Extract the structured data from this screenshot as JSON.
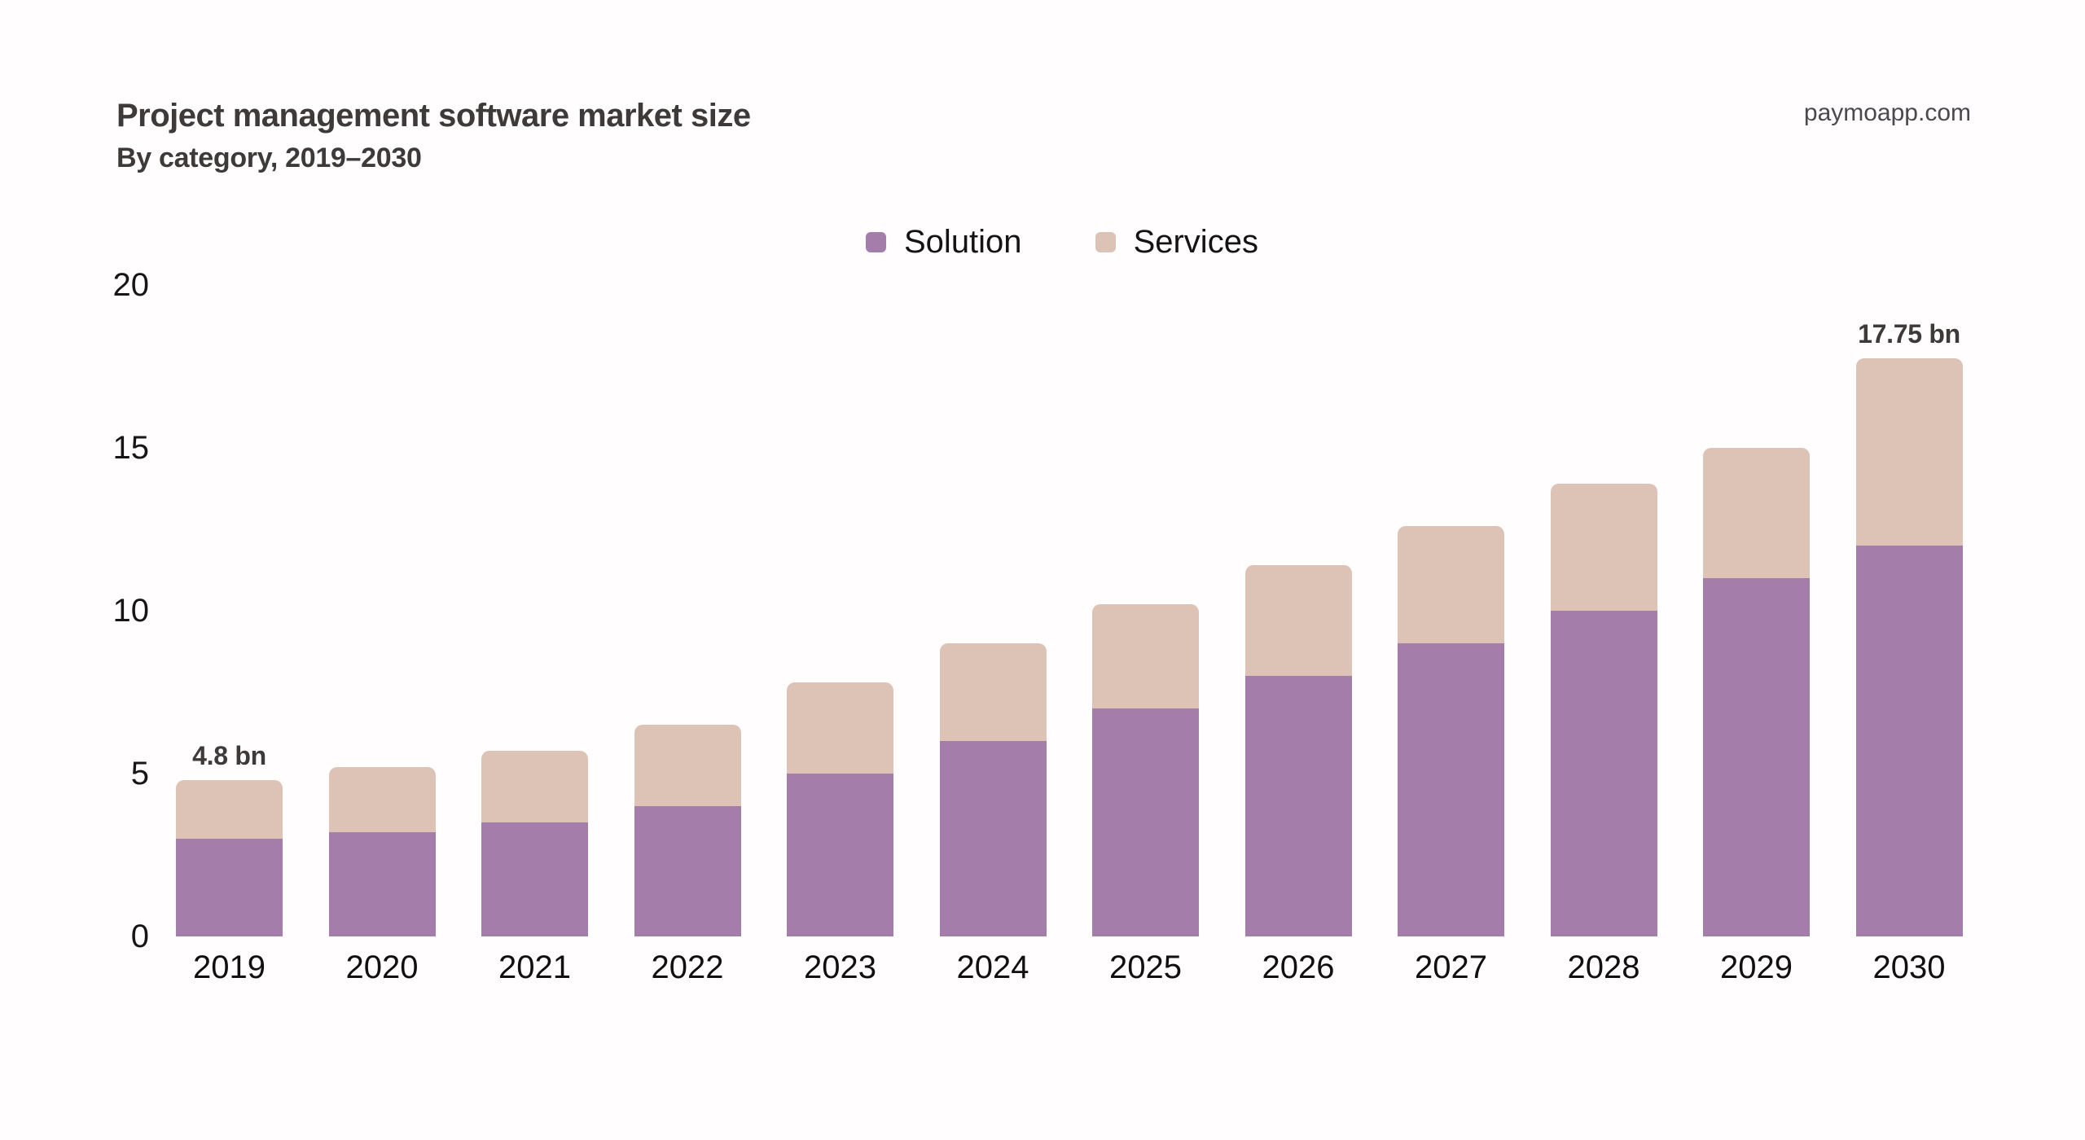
{
  "header": {
    "title": "Project management software market size",
    "subtitle": "By category, 2019–2030",
    "watermark": "paymoapp.com"
  },
  "colors": {
    "background": "#fffdfd",
    "solution": "#a47dab",
    "services": "#dcc3b6",
    "title_text": "#3e3a3a",
    "axis_text": "#161616",
    "watermark_text": "#4a494e"
  },
  "chart_data": {
    "type": "bar",
    "stacked": true,
    "title": "Project management software market size",
    "subtitle": "By category, 2019–2030",
    "categories": [
      "2019",
      "2020",
      "2021",
      "2022",
      "2023",
      "2024",
      "2025",
      "2026",
      "2027",
      "2028",
      "2029",
      "2030"
    ],
    "series": [
      {
        "name": "Solution",
        "color": "#a47dab",
        "values": [
          3.0,
          3.2,
          3.5,
          4.0,
          5.0,
          6.0,
          7.0,
          8.0,
          9.0,
          10.0,
          11.0,
          12.0
        ]
      },
      {
        "name": "Services",
        "color": "#dcc3b6",
        "values": [
          1.8,
          2.0,
          2.2,
          2.5,
          2.8,
          3.0,
          3.2,
          3.4,
          3.6,
          3.9,
          4.0,
          5.75
        ]
      }
    ],
    "totals": [
      4.8,
      5.2,
      5.7,
      6.5,
      7.8,
      9.0,
      10.2,
      11.4,
      12.6,
      13.9,
      15.0,
      17.75
    ],
    "annotations": [
      {
        "category": "2019",
        "label": "4.8 bn"
      },
      {
        "category": "2030",
        "label": "17.75 bn"
      }
    ],
    "unit": "bn",
    "xlabel": "",
    "ylabel": "",
    "ylim": [
      0,
      20
    ],
    "yticks": [
      0,
      5,
      10,
      15,
      20
    ],
    "grid": false,
    "legend_position": "top-center"
  }
}
